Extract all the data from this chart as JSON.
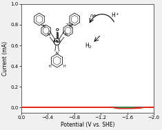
{
  "title": "",
  "xlabel": "Potential (V vs. SHE)",
  "ylabel": "Current (mA)",
  "xlim": [
    0.0,
    -2.0
  ],
  "ylim": [
    -0.05,
    1.0
  ],
  "xticks": [
    0.0,
    -0.4,
    -0.8,
    -1.2,
    -1.6,
    -2.0
  ],
  "yticks": [
    0.0,
    0.2,
    0.4,
    0.6,
    0.8,
    1.0
  ],
  "background": "#f0f0f0",
  "plot_bg": "#ffffff",
  "colors": {
    "black": "#222222",
    "red": "#e8231a",
    "green": "#3aaa35",
    "blue": "#2060c8"
  },
  "curve_lw": 0.9
}
